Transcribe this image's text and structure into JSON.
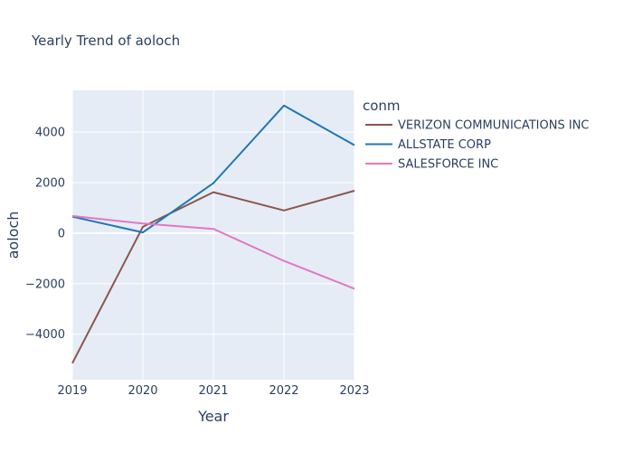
{
  "chart_data": {
    "type": "line",
    "title": "Yearly Trend of aoloch",
    "xlabel": "Year",
    "ylabel": "aoloch",
    "x": [
      2019,
      2020,
      2021,
      2022,
      2023
    ],
    "xlim": [
      2019,
      2023
    ],
    "ylim": [
      -5800,
      5650
    ],
    "yticks": [
      -4000,
      -2000,
      0,
      2000,
      4000
    ],
    "ytick_labels": [
      "−4000",
      "−2000",
      "0",
      "2000",
      "4000"
    ],
    "legend_title": "conm",
    "legend_position": "right",
    "grid": true,
    "series": [
      {
        "name": "VERIZON COMMUNICATIONS INC",
        "color": "#8c564b",
        "values": [
          -5150,
          250,
          1620,
          900,
          1680
        ]
      },
      {
        "name": "ALLSTATE CORP",
        "color": "#1f77b4",
        "values": [
          650,
          30,
          1980,
          5050,
          3480
        ]
      },
      {
        "name": "SALESFORCE INC",
        "color": "#e377c2",
        "values": [
          680,
          380,
          170,
          -1100,
          -2200
        ]
      }
    ]
  }
}
